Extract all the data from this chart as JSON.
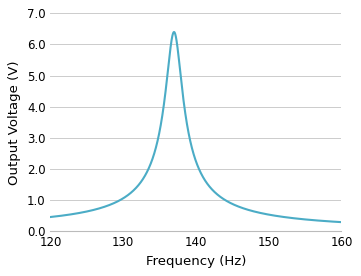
{
  "title": "",
  "xlabel": "Frequency (Hz)",
  "ylabel": "Output Voltage (V)",
  "line_color": "#4BACC6",
  "line_width": 1.5,
  "xlim": [
    120,
    160
  ],
  "ylim": [
    0.0,
    7.0
  ],
  "xticks": [
    120,
    130,
    140,
    150,
    160
  ],
  "yticks": [
    0.0,
    1.0,
    2.0,
    3.0,
    4.0,
    5.0,
    6.0,
    7.0
  ],
  "resonance_freq": 137.0,
  "peak_voltage": 6.4,
  "Q_factor": 60.0,
  "background_color": "#FFFFFF",
  "grid_color": "#CCCCCC",
  "tick_label_fontsize": 8.5,
  "axis_label_fontsize": 9.5
}
